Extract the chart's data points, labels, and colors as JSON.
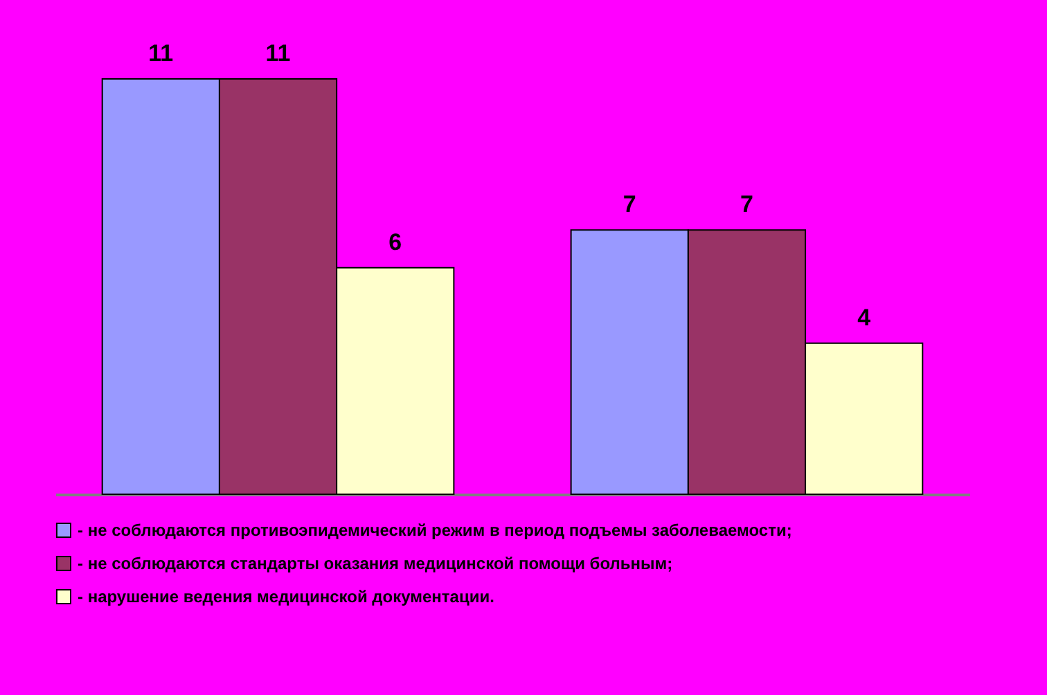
{
  "chart_data": {
    "type": "bar",
    "categories": [
      null,
      null
    ],
    "series": [
      {
        "name": "- не соблюдаются противоэпидемический режим в период подъемы заболеваемости;",
        "color": "#9999ff",
        "values": [
          11,
          7
        ]
      },
      {
        "name": "- не соблюдаются стандарты оказания медицинской помощи больным;",
        "color": "#993366",
        "values": [
          11,
          7
        ]
      },
      {
        "name": "- нарушение ведения медицинской документации.",
        "color": "#ffffcc",
        "values": [
          6,
          4
        ]
      }
    ],
    "data_labels": true,
    "legend": "bottom",
    "grid": false,
    "tick_labels": false
  }
}
